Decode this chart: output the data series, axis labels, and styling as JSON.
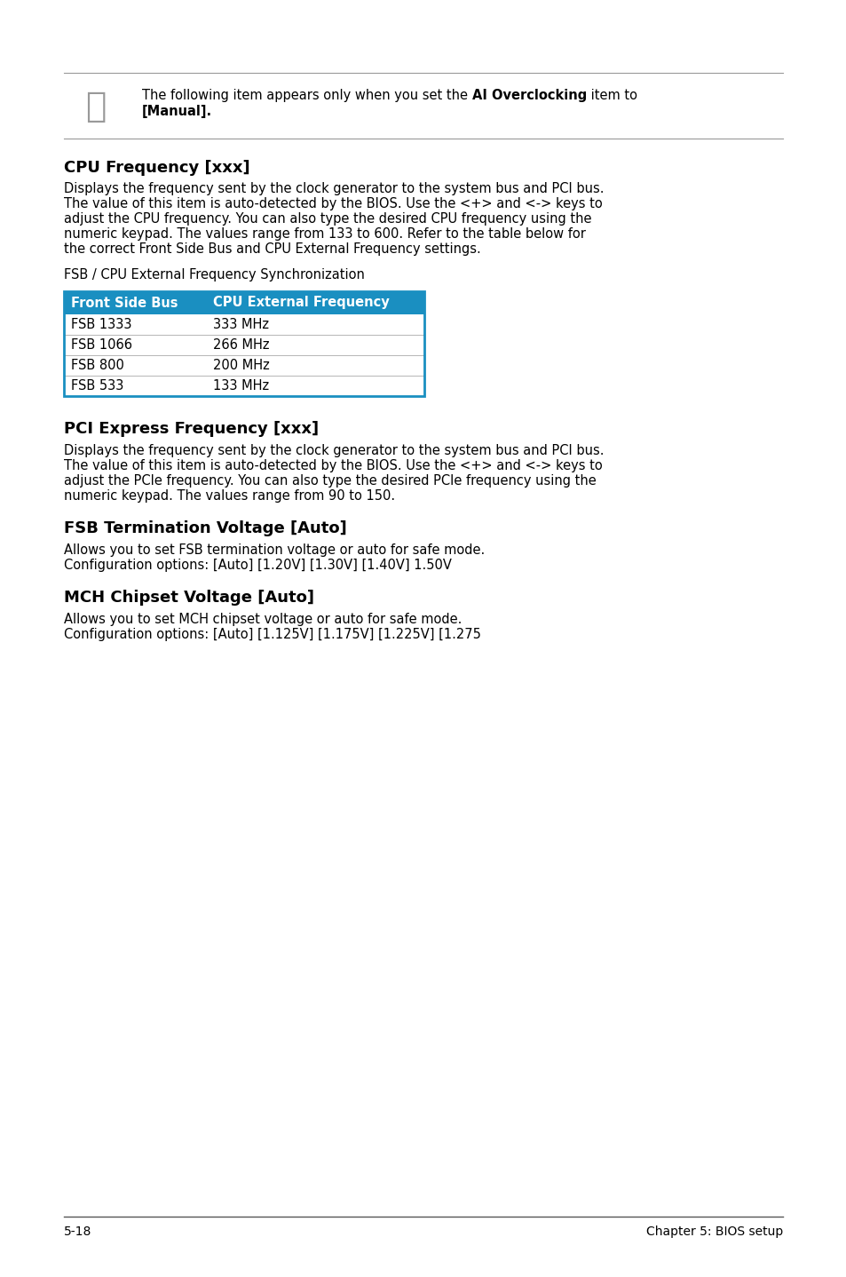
{
  "bg_color": "#ffffff",
  "note_line1_normal1": "The following item appears only when you set the ",
  "note_line1_bold": "AI Overclocking",
  "note_line1_normal2": " item to",
  "note_line2_bold": "[Manual].",
  "section1_title": "CPU Frequency [xxx]",
  "section1_body_lines": [
    "Displays the frequency sent by the clock generator to the system bus and PCI bus.",
    "The value of this item is auto-detected by the BIOS. Use the <+> and <-> keys to",
    "adjust the CPU frequency. You can also type the desired CPU frequency using the",
    "numeric keypad. The values range from 133 to 600. Refer to the table below for",
    "the correct Front Side Bus and CPU External Frequency settings."
  ],
  "table_caption": "FSB / CPU External Frequency Synchronization",
  "table_header": [
    "Front Side Bus",
    "CPU External Frequency"
  ],
  "table_rows": [
    [
      "FSB 1333",
      "333 MHz"
    ],
    [
      "FSB 1066",
      "266 MHz"
    ],
    [
      "FSB 800",
      "200 MHz"
    ],
    [
      "FSB 533",
      "133 MHz"
    ]
  ],
  "table_header_bg": "#1a8fc1",
  "table_header_color": "#ffffff",
  "table_border_color": "#1a8fc1",
  "table_divider_color": "#aaaaaa",
  "section2_title": "PCI Express Frequency [xxx]",
  "section2_body_lines": [
    "Displays the frequency sent by the clock generator to the system bus and PCI bus.",
    "The value of this item is auto-detected by the BIOS. Use the <+> and <-> keys to",
    "adjust the PCIe frequency. You can also type the desired PCIe frequency using the",
    "numeric keypad. The values range from 90 to 150."
  ],
  "section3_title": "FSB Termination Voltage [Auto]",
  "section3_body_lines": [
    "Allows you to set FSB termination voltage or auto for safe mode.",
    "Configuration options: [Auto] [1.20V] [1.30V] [1.40V] 1.50V"
  ],
  "section4_title": "MCH Chipset Voltage [Auto]",
  "section4_body_lines": [
    "Allows you to set MCH chipset voltage or auto for safe mode.",
    "Configuration options: [Auto] [1.125V] [1.175V] [1.225V] [1.275"
  ],
  "footer_left": "5-18",
  "footer_right": "Chapter 5: BIOS setup",
  "separator_color": "#999999",
  "body_font_size": 10.5,
  "title_font_size": 13,
  "footer_font_size": 10,
  "note_font_size": 10.5
}
